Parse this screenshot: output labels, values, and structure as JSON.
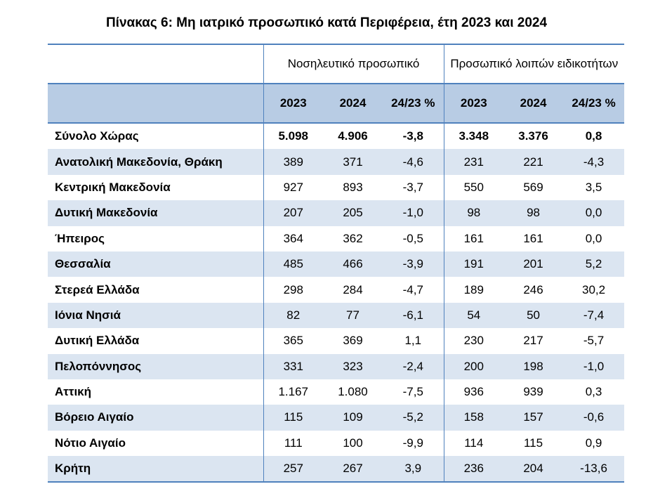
{
  "title": "Πίνακας 6: Μη ιατρικό προσωπικό κατά Περιφέρεια, έτη 2023 και 2024",
  "colors": {
    "header_fill": "#b8cce4",
    "row_shade": "#dbe5f1",
    "rule": "#4f81bd"
  },
  "header": {
    "groups": [
      "Νοσηλευτικό προσωπικό",
      "Προσωπικό λοιπών ειδικοτήτων"
    ],
    "subcols": [
      "2023",
      "2024",
      "24/23 %",
      "2023",
      "2024",
      "24/23 %"
    ]
  },
  "rows": [
    {
      "region": "Σύνολο Χώρας",
      "values": [
        "5.098",
        "4.906",
        "-3,8",
        "3.348",
        "3.376",
        "0,8"
      ]
    },
    {
      "region": "Ανατολική Μακεδονία, Θράκη",
      "values": [
        "389",
        "371",
        "-4,6",
        "231",
        "221",
        "-4,3"
      ]
    },
    {
      "region": "Κεντρική Μακεδονία",
      "values": [
        "927",
        "893",
        "-3,7",
        "550",
        "569",
        "3,5"
      ]
    },
    {
      "region": "Δυτική Μακεδονία",
      "values": [
        "207",
        "205",
        "-1,0",
        "98",
        "98",
        "0,0"
      ]
    },
    {
      "region": "Ήπειρος",
      "values": [
        "364",
        "362",
        "-0,5",
        "161",
        "161",
        "0,0"
      ]
    },
    {
      "region": "Θεσσαλία",
      "values": [
        "485",
        "466",
        "-3,9",
        "191",
        "201",
        "5,2"
      ]
    },
    {
      "region": "Στερεά Ελλάδα",
      "values": [
        "298",
        "284",
        "-4,7",
        "189",
        "246",
        "30,2"
      ]
    },
    {
      "region": "Ιόνια Νησιά",
      "values": [
        "82",
        "77",
        "-6,1",
        "54",
        "50",
        "-7,4"
      ]
    },
    {
      "region": "Δυτική Ελλάδα",
      "values": [
        "365",
        "369",
        "1,1",
        "230",
        "217",
        "-5,7"
      ]
    },
    {
      "region": "Πελοπόννησος",
      "values": [
        "331",
        "323",
        "-2,4",
        "200",
        "198",
        "-1,0"
      ]
    },
    {
      "region": "Αττική",
      "values": [
        "1.167",
        "1.080",
        "-7,5",
        "936",
        "939",
        "0,3"
      ]
    },
    {
      "region": "Βόρειο Αιγαίο",
      "values": [
        "115",
        "109",
        "-5,2",
        "158",
        "157",
        "-0,6"
      ]
    },
    {
      "region": "Νότιο Αιγαίο",
      "values": [
        "111",
        "100",
        "-9,9",
        "114",
        "115",
        "0,9"
      ]
    },
    {
      "region": "Κρήτη",
      "values": [
        "257",
        "267",
        "3,9",
        "236",
        "204",
        "-13,6"
      ]
    }
  ]
}
